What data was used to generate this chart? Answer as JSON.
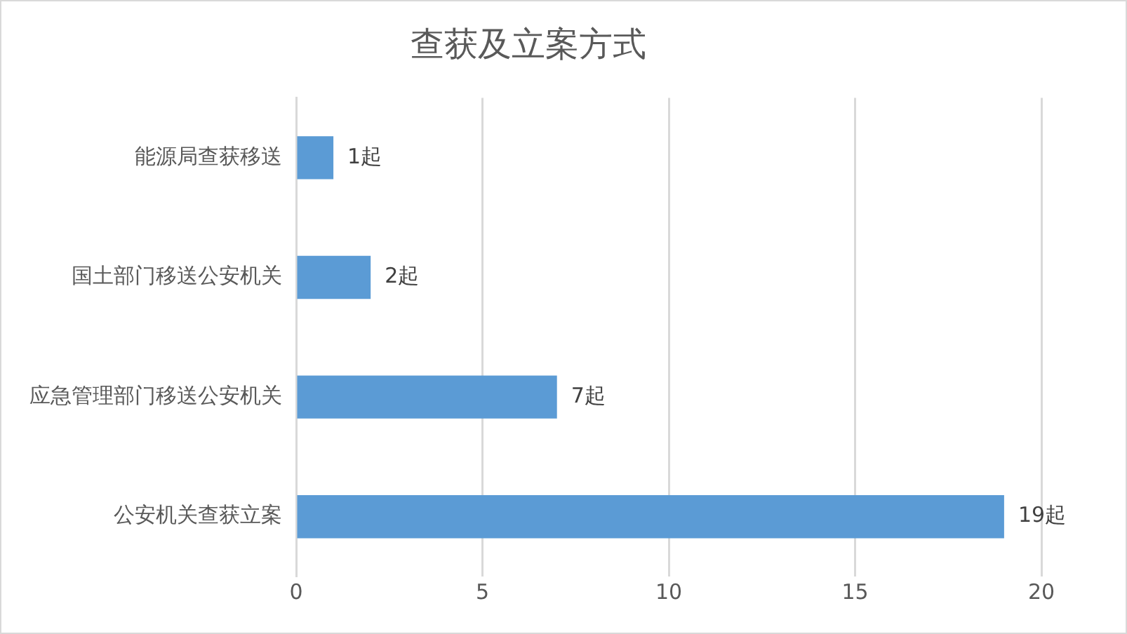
{
  "chart_data": {
    "type": "bar",
    "orientation": "horizontal",
    "title": "查获及立案方式",
    "categories": [
      "能源局查获移送",
      "国土部门移送公安机关",
      "应急管理部门移送公安机关",
      "公安机关查获立案"
    ],
    "values": [
      1,
      2,
      7,
      19
    ],
    "color": "#5b9bd5",
    "value_labels": [
      "1起",
      "2起",
      "7起",
      "19起"
    ],
    "xlim": [
      0,
      20
    ],
    "xticks": [
      0,
      5,
      10,
      15,
      20
    ],
    "grid": "x",
    "legend": false
  }
}
